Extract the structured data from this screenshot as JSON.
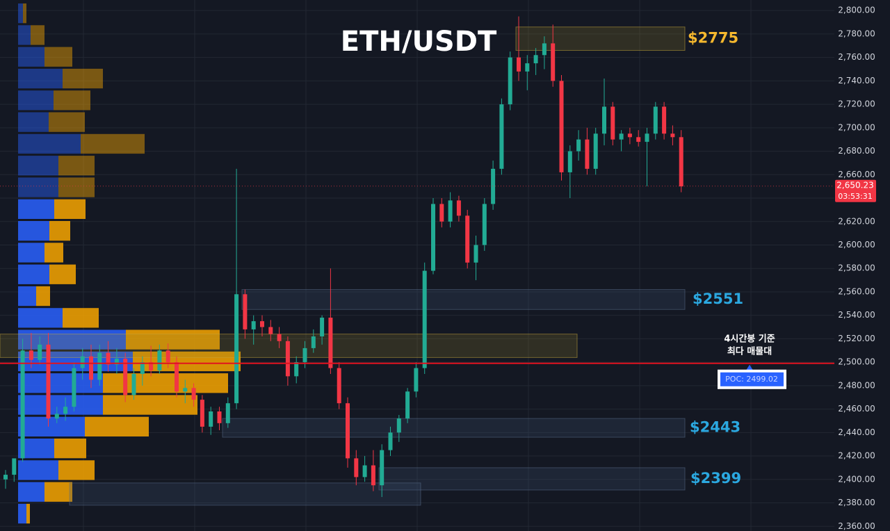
{
  "chart_data": {
    "type": "candlestick",
    "title": "ETH/USDT",
    "ylim": [
      2356,
      2809
    ],
    "yticks": [
      {
        "value": 2360,
        "label": "2,360.00"
      },
      {
        "value": 2380,
        "label": "2,380.00"
      },
      {
        "value": 2400,
        "label": "2,400.00"
      },
      {
        "value": 2420,
        "label": "2,420.00"
      },
      {
        "value": 2440,
        "label": "2,440.00"
      },
      {
        "value": 2460,
        "label": "2,460.00"
      },
      {
        "value": 2480,
        "label": "2,480.00"
      },
      {
        "value": 2500,
        "label": "2,500.00"
      },
      {
        "value": 2520,
        "label": "2,520.00"
      },
      {
        "value": 2540,
        "label": "2,540.00"
      },
      {
        "value": 2560,
        "label": "2,560.00"
      },
      {
        "value": 2580,
        "label": "2,580.00"
      },
      {
        "value": 2600,
        "label": "2,600.00"
      },
      {
        "value": 2620,
        "label": "2,620.00"
      },
      {
        "value": 2640,
        "label": "2,640.00"
      },
      {
        "value": 2660,
        "label": "2,660.00"
      },
      {
        "value": 2680,
        "label": "2,680.00"
      },
      {
        "value": 2700,
        "label": "2,700.00"
      },
      {
        "value": 2720,
        "label": "2,720.00"
      },
      {
        "value": 2740,
        "label": "2,740.00"
      },
      {
        "value": 2760,
        "label": "2,760.00"
      },
      {
        "value": 2780,
        "label": "2,780.00"
      },
      {
        "value": 2800,
        "label": "2,800.00"
      }
    ],
    "grid": true,
    "up_color": "#22ab94",
    "down_color": "#f23645",
    "candles": {
      "open": [
        2400,
        2404,
        2418,
        2510,
        2502,
        2515,
        2452,
        2456,
        2462,
        2495,
        2505,
        2485,
        2508,
        2498,
        2503,
        2472,
        2490,
        2500,
        2493,
        2510,
        2500,
        2475,
        2478,
        2468,
        2445,
        2458,
        2448,
        2465,
        2558,
        2528,
        2535,
        2530,
        2524,
        2518,
        2488,
        2500,
        2512,
        2522,
        2538,
        2495,
        2465,
        2418,
        2402,
        2412,
        2395,
        2425,
        2440,
        2452,
        2475,
        2495,
        2578,
        2635,
        2620,
        2638,
        2625,
        2585,
        2600,
        2635,
        2665,
        2720,
        2760,
        2748,
        2755,
        2762,
        2772,
        2740,
        2662,
        2680,
        2690,
        2665,
        2695,
        2718,
        2690,
        2695,
        2692,
        2688,
        2695,
        2718,
        2695,
        2692
      ],
      "high": [
        2408,
        2415,
        2520,
        2525,
        2522,
        2525,
        2462,
        2470,
        2500,
        2512,
        2515,
        2515,
        2518,
        2512,
        2508,
        2495,
        2505,
        2514,
        2515,
        2516,
        2505,
        2485,
        2482,
        2472,
        2462,
        2462,
        2470,
        2665,
        2562,
        2540,
        2540,
        2536,
        2530,
        2522,
        2505,
        2518,
        2528,
        2540,
        2580,
        2500,
        2470,
        2425,
        2420,
        2425,
        2430,
        2445,
        2455,
        2478,
        2500,
        2585,
        2640,
        2640,
        2645,
        2642,
        2630,
        2608,
        2640,
        2672,
        2725,
        2765,
        2795,
        2762,
        2768,
        2778,
        2788,
        2745,
        2685,
        2698,
        2700,
        2700,
        2742,
        2722,
        2698,
        2700,
        2698,
        2700,
        2722,
        2722,
        2702,
        2698
      ],
      "low": [
        2392,
        2398,
        2415,
        2495,
        2498,
        2445,
        2448,
        2450,
        2458,
        2485,
        2478,
        2480,
        2492,
        2490,
        2466,
        2468,
        2480,
        2488,
        2490,
        2495,
        2470,
        2465,
        2462,
        2440,
        2438,
        2442,
        2444,
        2460,
        2520,
        2515,
        2522,
        2518,
        2512,
        2480,
        2482,
        2495,
        2508,
        2515,
        2490,
        2460,
        2410,
        2395,
        2398,
        2390,
        2385,
        2420,
        2432,
        2448,
        2470,
        2490,
        2575,
        2615,
        2615,
        2620,
        2580,
        2570,
        2595,
        2630,
        2660,
        2715,
        2740,
        2732,
        2745,
        2750,
        2735,
        2655,
        2640,
        2672,
        2660,
        2660,
        2685,
        2685,
        2680,
        2686,
        2684,
        2650,
        2690,
        2690,
        2685,
        2645
      ],
      "close": [
        2404,
        2418,
        2510,
        2502,
        2515,
        2452,
        2456,
        2462,
        2495,
        2505,
        2485,
        2508,
        2498,
        2503,
        2472,
        2490,
        2500,
        2493,
        2510,
        2500,
        2475,
        2478,
        2468,
        2445,
        2458,
        2448,
        2465,
        2558,
        2528,
        2535,
        2530,
        2524,
        2518,
        2488,
        2500,
        2512,
        2522,
        2538,
        2495,
        2465,
        2418,
        2402,
        2412,
        2395,
        2425,
        2440,
        2452,
        2475,
        2495,
        2578,
        2635,
        2620,
        2638,
        2625,
        2585,
        2600,
        2635,
        2665,
        2720,
        2760,
        2748,
        2755,
        2762,
        2772,
        2740,
        2662,
        2680,
        2690,
        2665,
        2695,
        2718,
        2690,
        2695,
        2692,
        2688,
        2695,
        2718,
        2695,
        2692,
        2650
      ]
    },
    "volume_profile": {
      "buy_color": "#2962ff",
      "sell_color": "#f7a600",
      "buy": [
        7,
        18,
        38,
        64,
        51,
        44,
        90,
        58,
        58,
        52,
        45,
        38,
        45,
        26,
        64,
        155,
        165,
        122,
        122,
        96,
        52,
        58,
        38,
        12
      ],
      "sell": [
        5,
        20,
        40,
        58,
        53,
        52,
        92,
        52,
        52,
        45,
        30,
        27,
        38,
        20,
        52,
        135,
        155,
        180,
        136,
        92,
        46,
        52,
        40,
        5
      ]
    },
    "zones": [
      {
        "label": "$2775",
        "low": 2766,
        "high": 2786,
        "color": "#f5b82e"
      },
      {
        "label": "$2551",
        "low": 2545,
        "high": 2562,
        "color": "#2ba8e0"
      },
      {
        "low": 2504,
        "high": 2524
      },
      {
        "label": "$2443",
        "low": 2436,
        "high": 2452,
        "color": "#2ba8e0"
      },
      {
        "label": "$2399",
        "low": 2391,
        "high": 2410,
        "color": "#2ba8e0"
      },
      {
        "low": 2378,
        "high": 2397
      }
    ],
    "poc": {
      "value": 2499.02,
      "label": "POC: 2499.02",
      "note": [
        "4시간봉 기준",
        "최다 매물대"
      ]
    },
    "last_price": {
      "value": 2650.23,
      "label": "2,650.23",
      "countdown": "03:53:31"
    }
  }
}
